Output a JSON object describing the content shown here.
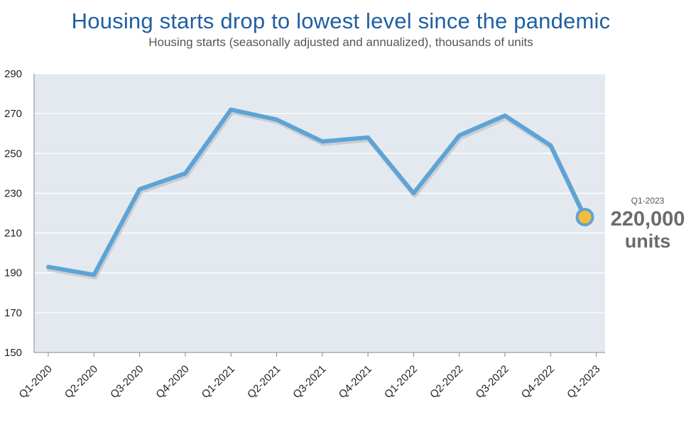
{
  "title": "Housing starts drop to lowest level since the pandemic",
  "subtitle": "Housing starts (seasonally adjusted and annualized), thousands of units",
  "callout": {
    "period": "Q1-2023",
    "value": "220,000",
    "unit": "units"
  },
  "colors": {
    "line": "#5ea3d6",
    "plot_background": "#e3e9ee",
    "marker": "#f5bd3a",
    "title": "#1f5fa3"
  },
  "chart_data": {
    "type": "line",
    "title": "Housing starts drop to lowest level since the pandemic",
    "subtitle": "Housing starts (seasonally adjusted and annualized), thousands of units",
    "categories": [
      "Q1-2020",
      "Q2-2020",
      "Q3-2020",
      "Q4-2020",
      "Q1-2021",
      "Q2-2021",
      "Q3-2021",
      "Q4-2021",
      "Q1-2022",
      "Q2-2022",
      "Q3-2022",
      "Q4-2022",
      "Q1-2023"
    ],
    "tick_labels": [
      "Q1-2020",
      "Q2-2020",
      "Q3-2020",
      "Q4-2020",
      "Q1-2021",
      "Q2-2021",
      "Q3-2021",
      "Q4-2021",
      "Q1-2022",
      "Q2-2022",
      "Q3-2022",
      "Q4-2022",
      "Q1-2023"
    ],
    "x": [
      0.0,
      1.0,
      2.0,
      3.0,
      4.0,
      5.0,
      6.0,
      7.0,
      8.0,
      9.0,
      10.0,
      11.0,
      11.75
    ],
    "values": [
      193,
      189,
      232,
      240,
      272,
      267,
      256,
      258,
      230,
      259,
      269,
      254,
      218
    ],
    "yticks": [
      150,
      170,
      190,
      210,
      230,
      250,
      270,
      290
    ],
    "ylim": [
      150,
      290
    ],
    "xlabel": "",
    "ylabel": "",
    "grid": true,
    "highlight_index": 12
  }
}
